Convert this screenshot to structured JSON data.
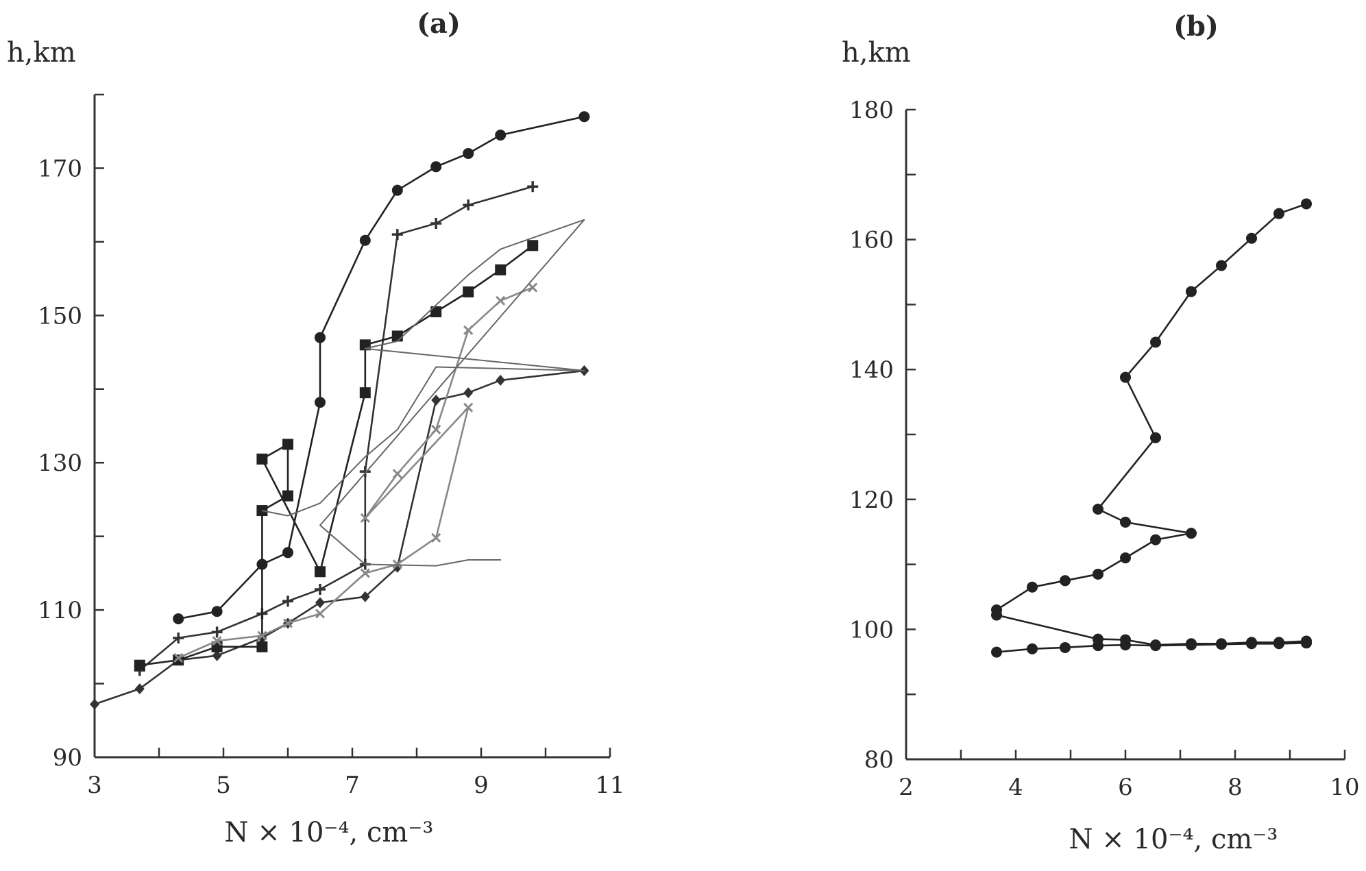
{
  "chart_data": [
    {
      "type": "line",
      "title": "(a)",
      "xlabel": "N × 10⁻⁴, cm⁻³",
      "ylabel": "h,km",
      "xlim": [
        3,
        11
      ],
      "ylim": [
        90,
        180
      ],
      "xticks": [
        3,
        5,
        7,
        9,
        11
      ],
      "yticks": [
        90,
        110,
        130,
        150,
        170
      ],
      "xminor": [
        3,
        4,
        5,
        6,
        7,
        8,
        9,
        10,
        11
      ],
      "yminor": [
        90,
        100,
        110,
        120,
        130,
        140,
        150,
        160,
        170,
        180
      ],
      "grid": false,
      "series": [
        {
          "name": "circles",
          "marker": "circle",
          "color": "#222222",
          "x": [
            4.3,
            4.9,
            5.6,
            6.0,
            6.5,
            6.5,
            7.2,
            7.7,
            8.3,
            8.8,
            9.3,
            10.6
          ],
          "y": [
            108.8,
            109.8,
            116.2,
            117.8,
            138.2,
            147.0,
            160.2,
            167.0,
            170.2,
            172.0,
            174.5,
            177.0
          ]
        },
        {
          "name": "crosses",
          "marker": "plus",
          "color": "#333333",
          "x": [
            3.7,
            4.3,
            4.9,
            5.6,
            6.0,
            6.5,
            7.2,
            7.2,
            7.7,
            8.3,
            8.8,
            9.8
          ],
          "y": [
            101.8,
            106.2,
            107.0,
            109.5,
            111.2,
            112.8,
            116.2,
            128.8,
            161.0,
            162.5,
            165.0,
            167.5
          ]
        },
        {
          "name": "diamonds",
          "marker": "diamond",
          "color": "#333333",
          "x": [
            3.0,
            3.7,
            4.3,
            4.9,
            5.6,
            6.0,
            6.5,
            7.2,
            7.7,
            8.3,
            8.8,
            9.3,
            10.6
          ],
          "y": [
            97.2,
            99.3,
            103.2,
            103.8,
            106.2,
            108.2,
            111.0,
            111.8,
            115.8,
            138.5,
            139.5,
            141.2,
            142.5
          ]
        },
        {
          "name": "squares",
          "marker": "square",
          "color": "#222222",
          "x": [
            3.7,
            4.3,
            4.9,
            5.6,
            5.6,
            6.0,
            6.0,
            5.6,
            6.5,
            7.2,
            7.2,
            7.7,
            8.3,
            8.8,
            9.3,
            9.8
          ],
          "y": [
            102.5,
            103.2,
            105.0,
            105.0,
            123.5,
            125.5,
            132.5,
            130.5,
            115.2,
            139.5,
            146.0,
            147.2,
            150.5,
            153.2,
            156.2,
            159.5
          ]
        },
        {
          "name": "x-marks",
          "marker": "x",
          "color": "#888888",
          "x": [
            4.3,
            4.9,
            5.6,
            6.0,
            6.5,
            7.2,
            7.7,
            8.3,
            8.8,
            7.2,
            7.7,
            8.3,
            8.8,
            9.3,
            9.8
          ],
          "y": [
            103.5,
            105.8,
            106.5,
            108.2,
            109.5,
            115.0,
            116.2,
            119.8,
            137.5,
            122.5,
            128.5,
            134.5,
            148.0,
            152.0,
            153.8
          ]
        },
        {
          "name": "thin-connectors",
          "marker": "none",
          "color": "#666666",
          "x": [
            5.6,
            6.0,
            6.5,
            7.2,
            7.7,
            8.3,
            10.6,
            7.2,
            7.7,
            8.8,
            9.3,
            10.6,
            6.5,
            7.2,
            8.3,
            8.8,
            9.3
          ],
          "y": [
            123.5,
            122.8,
            124.5,
            130.8,
            134.5,
            143.0,
            142.5,
            145.5,
            146.5,
            155.5,
            159.0,
            163.0,
            121.5,
            116.2,
            116.0,
            116.8,
            116.8
          ]
        }
      ]
    },
    {
      "type": "line",
      "title": "(b)",
      "xlabel": "N × 10⁻⁴, cm⁻³",
      "ylabel": "h,km",
      "xlim": [
        2,
        10
      ],
      "ylim": [
        80,
        180
      ],
      "xticks": [
        2,
        4,
        6,
        8,
        10
      ],
      "yticks": [
        80,
        100,
        120,
        140,
        160,
        180
      ],
      "xminor": [
        2,
        3,
        4,
        5,
        6,
        7,
        8,
        9,
        10
      ],
      "yminor": [
        80,
        90,
        100,
        110,
        120,
        130,
        140,
        150,
        160,
        170,
        180
      ],
      "grid": false,
      "series": [
        {
          "name": "profile",
          "marker": "circle",
          "color": "#222222",
          "x": [
            3.65,
            4.3,
            4.9,
            5.5,
            6.0,
            6.55,
            7.2,
            7.75,
            8.3,
            8.8,
            9.3,
            9.3,
            8.8,
            8.3,
            7.75,
            7.2,
            6.55,
            6.0,
            5.5,
            3.65,
            3.65,
            4.3,
            4.9,
            5.5,
            6.0,
            6.55,
            7.2,
            6.0,
            5.5,
            6.55,
            6.0,
            6.55,
            7.2,
            7.75,
            8.3,
            8.8,
            9.3
          ],
          "y": [
            96.5,
            97.0,
            97.2,
            97.5,
            97.6,
            97.5,
            97.6,
            97.7,
            97.8,
            97.8,
            97.9,
            98.2,
            98.0,
            98.0,
            97.8,
            97.8,
            97.6,
            98.4,
            98.5,
            102.2,
            103.0,
            106.5,
            107.5,
            108.5,
            111.0,
            113.8,
            114.8,
            116.5,
            118.5,
            129.5,
            138.8,
            144.2,
            152.0,
            156.0,
            160.2,
            164.0,
            165.5
          ]
        }
      ]
    }
  ]
}
